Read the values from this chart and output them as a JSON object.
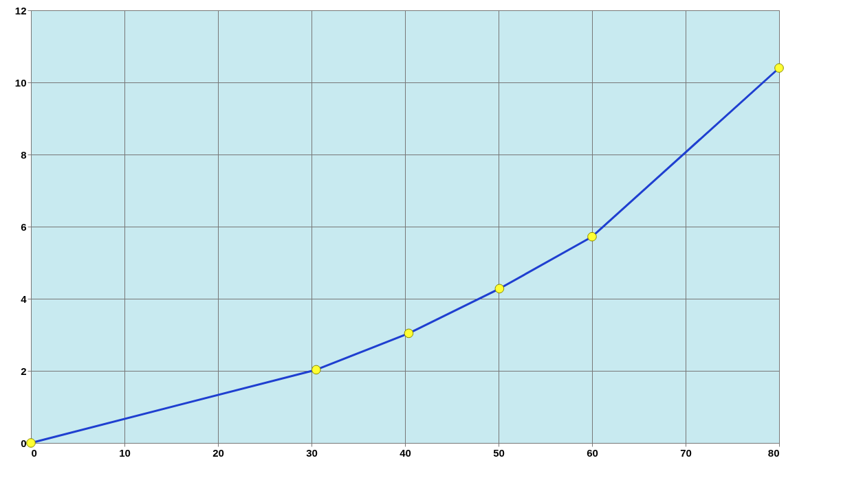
{
  "chart_data": {
    "type": "line",
    "x": [
      0,
      30.5,
      40.4,
      50.1,
      60,
      80
    ],
    "series": [
      {
        "color": "#1f3fd0",
        "values": [
          0,
          2.03,
          3.04,
          4.28,
          5.72,
          10.4
        ]
      }
    ],
    "xlim": [
      0,
      80
    ],
    "xticks": [
      0,
      10,
      20,
      30,
      40,
      50,
      60,
      70,
      80
    ],
    "ylim": [
      0,
      12
    ],
    "yticks": [
      0,
      2,
      4,
      6,
      8,
      10,
      12
    ],
    "grid": true,
    "marker": "circle",
    "line_style": "solid"
  }
}
